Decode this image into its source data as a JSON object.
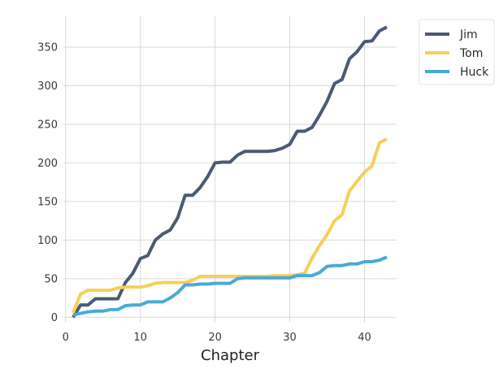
{
  "chart_data": {
    "type": "line",
    "title": "",
    "xlabel": "Chapter",
    "ylabel": "",
    "xlim": [
      -0.3,
      44.3
    ],
    "ylim": [
      -7,
      390
    ],
    "xticks": [
      0,
      10,
      20,
      30,
      40
    ],
    "yticks": [
      0,
      50,
      100,
      150,
      200,
      250,
      300,
      350
    ],
    "grid": true,
    "legend_position": "outside-top-right",
    "x": [
      1,
      2,
      3,
      4,
      5,
      6,
      7,
      8,
      9,
      10,
      11,
      12,
      13,
      14,
      15,
      16,
      17,
      18,
      19,
      20,
      21,
      22,
      23,
      24,
      25,
      26,
      27,
      28,
      29,
      30,
      31,
      32,
      33,
      34,
      35,
      36,
      37,
      38,
      39,
      40,
      41,
      42,
      43
    ],
    "series": [
      {
        "name": "Jim",
        "color": "#4b5a74",
        "values": [
          0,
          16,
          16,
          24,
          24,
          24,
          24,
          45,
          57,
          76,
          80,
          100,
          108,
          113,
          129,
          158,
          158,
          168,
          182,
          200,
          201,
          201,
          210,
          215,
          215,
          215,
          215,
          216,
          219,
          224,
          241,
          241,
          246,
          262,
          280,
          303,
          308,
          335,
          344,
          357,
          358,
          371,
          376
        ]
      },
      {
        "name": "Tom",
        "color": "#f5cf5a",
        "values": [
          6,
          30,
          35,
          35,
          35,
          35,
          38,
          39,
          39,
          39,
          41,
          44,
          45,
          45,
          45,
          45,
          48,
          53,
          53,
          53,
          53,
          53,
          53,
          53,
          53,
          53,
          53,
          54,
          54,
          54,
          55,
          57,
          77,
          93,
          107,
          125,
          133,
          164,
          176,
          188,
          196,
          226,
          231
        ]
      },
      {
        "name": "Huck",
        "color": "#4aa9d6",
        "values": [
          3,
          5,
          7,
          8,
          8,
          10,
          10,
          15,
          16,
          16,
          20,
          20,
          20,
          25,
          32,
          42,
          42,
          43,
          43,
          44,
          44,
          44,
          50,
          51,
          51,
          51,
          51,
          51,
          51,
          51,
          54,
          54,
          54,
          58,
          66,
          67,
          67,
          69,
          69,
          72,
          72,
          74,
          78
        ]
      }
    ]
  }
}
